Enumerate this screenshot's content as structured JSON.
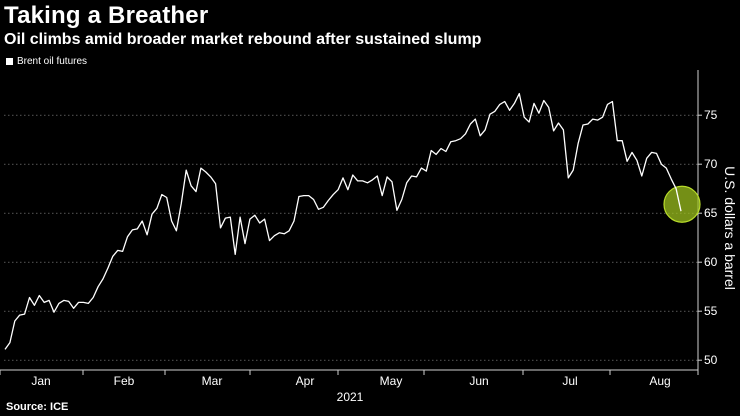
{
  "title": "Taking a Breather",
  "subtitle": "Oil climbs amid broader market rebound after sustained slump",
  "source": "Source: ICE",
  "colors": {
    "background": "#000000",
    "line": "#ffffff",
    "highlight": "#9bbf1e"
  },
  "chart_data": {
    "type": "line",
    "ylabel": "U.S. dollars a barrel",
    "xlabel": "2021",
    "legend": "top-left",
    "grid": true,
    "ylim": [
      49,
      79
    ],
    "yticks": [
      "50",
      "55",
      "60",
      "65",
      "70",
      "75"
    ],
    "xticks": [
      "Jan",
      "Feb",
      "Mar",
      "Apr",
      "May",
      "Jun",
      "Jul",
      "Aug"
    ],
    "series": [
      {
        "name": "Brent oil futures",
        "values": [
          51.1,
          51.8,
          54.0,
          54.6,
          54.7,
          56.4,
          55.6,
          56.6,
          55.9,
          56.1,
          54.9,
          55.8,
          56.1,
          56.0,
          55.3,
          55.9,
          55.9,
          55.8,
          56.4,
          57.5,
          58.3,
          59.4,
          60.6,
          61.2,
          61.1,
          62.6,
          63.3,
          63.4,
          64.2,
          62.8,
          64.9,
          65.5,
          66.9,
          66.6,
          64.2,
          63.2,
          66.0,
          69.4,
          67.8,
          67.2,
          69.6,
          69.2,
          68.7,
          68.0,
          63.5,
          64.5,
          64.6,
          60.8,
          64.6,
          61.9,
          64.4,
          64.8,
          64.0,
          64.4,
          62.2,
          62.7,
          63.0,
          62.9,
          63.2,
          64.2,
          66.7,
          66.8,
          66.8,
          66.4,
          65.4,
          65.6,
          66.3,
          66.9,
          67.4,
          68.6,
          67.4,
          68.9,
          68.3,
          68.3,
          68.1,
          68.4,
          68.8,
          66.8,
          68.7,
          68.2,
          65.3,
          66.4,
          68.1,
          68.8,
          68.7,
          69.6,
          69.3,
          71.4,
          71.0,
          71.6,
          71.3,
          72.3,
          72.4,
          72.6,
          73.1,
          74.1,
          74.6,
          72.9,
          73.5,
          75.1,
          75.4,
          76.1,
          76.4,
          75.5,
          76.2,
          77.2,
          74.8,
          74.3,
          76.2,
          75.2,
          76.5,
          75.8,
          73.4,
          74.2,
          73.5,
          68.6,
          69.4,
          72.1,
          74.0,
          74.1,
          74.6,
          74.5,
          74.8,
          76.1,
          76.4,
          72.4,
          72.4,
          70.3,
          71.2,
          70.4,
          68.8,
          70.6,
          71.2,
          71.1,
          70.0,
          69.6,
          68.5,
          67.5,
          65.2
        ]
      }
    ]
  }
}
